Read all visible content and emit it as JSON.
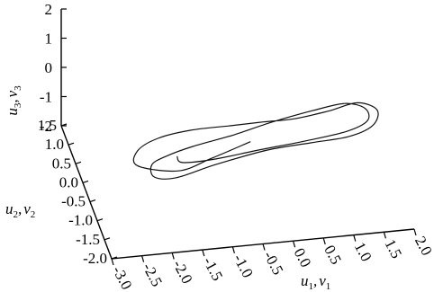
{
  "chart_data": {
    "type": "line",
    "title": "",
    "axes": {
      "x": {
        "label_main": "u",
        "label_sub1": "1",
        "label_sep": ",",
        "label_main2": "v",
        "label_sub2": "1",
        "range": [
          -3.0,
          2.0
        ],
        "ticks": [
          -3.0,
          -2.5,
          -2.0,
          -1.5,
          -1.0,
          -0.5,
          0.0,
          0.5,
          1.0,
          1.5,
          2.0
        ],
        "tick_labels": [
          "-3.0",
          "-2.5",
          "-2.0",
          "-1.5",
          "-1.0",
          "-0.5",
          "0.0",
          "0.5",
          "1.0",
          "1.5",
          "2.0"
        ]
      },
      "y": {
        "label_main": "u",
        "label_sub1": "2",
        "label_sep": ",",
        "label_main2": "v",
        "label_sub2": "2",
        "range": [
          -2.0,
          1.5
        ],
        "ticks": [
          -2.0,
          -1.5,
          -1.0,
          -0.5,
          0.0,
          0.5,
          1.0,
          1.5
        ],
        "tick_labels": [
          "-2.0",
          "-1.5",
          "-1.0",
          "-0.5",
          "0.0",
          "0.5",
          "1.0",
          "1.5"
        ]
      },
      "z": {
        "label_main": "u",
        "label_sub1": "3",
        "label_sep": ",",
        "label_main2": "v",
        "label_sub2": "3",
        "range": [
          -2,
          2
        ],
        "ticks": [
          -2,
          -1,
          0,
          1,
          2
        ],
        "tick_labels": [
          "-2",
          "-1",
          "0",
          "1",
          "2"
        ]
      }
    },
    "grid": false,
    "legend": "none",
    "line_color": "#111111",
    "series": [
      {
        "points": [
          [
            -0.3,
            -0.3,
            -0.75
          ],
          [
            -1.0,
            -0.55,
            -0.85
          ],
          [
            -1.6,
            -0.75,
            -0.9
          ],
          [
            -2.3,
            -0.85,
            -0.45
          ],
          [
            -2.3,
            -0.85,
            0.05
          ],
          [
            -1.95,
            -0.8,
            0.35
          ],
          [
            -1.4,
            -0.75,
            0.45
          ],
          [
            -0.7,
            -0.55,
            0.2
          ],
          [
            -0.1,
            -0.35,
            -0.05
          ],
          [
            0.45,
            -0.2,
            -0.25
          ],
          [
            1.05,
            -0.05,
            -0.3
          ],
          [
            1.55,
            0.05,
            -0.25
          ],
          [
            1.9,
            0.15,
            -0.7
          ],
          [
            1.85,
            0.25,
            -1.35
          ],
          [
            1.45,
            0.25,
            -1.65
          ],
          [
            0.8,
            0.15,
            -1.6
          ],
          [
            0.05,
            0.0,
            -1.5
          ],
          [
            -0.85,
            -0.2,
            -1.55
          ],
          [
            -1.55,
            -0.4,
            -1.6
          ],
          [
            -1.95,
            -0.55,
            -1.3
          ],
          [
            -2.0,
            -0.6,
            -0.8
          ],
          [
            -1.75,
            -0.6,
            -0.55
          ],
          [
            -1.3,
            -0.5,
            -0.45
          ],
          [
            -0.6,
            -0.35,
            -0.4
          ],
          [
            0.1,
            -0.15,
            -0.35
          ],
          [
            0.8,
            0.0,
            -0.3
          ],
          [
            1.35,
            0.1,
            -0.3
          ],
          [
            1.7,
            0.15,
            -0.6
          ],
          [
            1.75,
            0.2,
            -1.1
          ],
          [
            1.4,
            0.2,
            -1.4
          ],
          [
            0.7,
            0.1,
            -1.45
          ],
          [
            -0.1,
            -0.05,
            -1.4
          ],
          [
            -0.9,
            -0.25,
            -1.3
          ],
          [
            -1.45,
            -0.4,
            -1.1
          ],
          [
            -1.55,
            -0.45,
            -0.8
          ]
        ]
      }
    ]
  }
}
